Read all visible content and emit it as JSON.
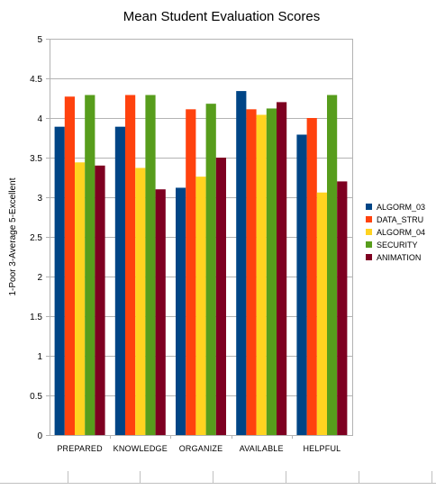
{
  "chart_data": {
    "type": "bar",
    "title": "Mean Student Evaluation Scores",
    "xlabel": "",
    "ylabel": "1-Poor  3-Average  5-Excellent",
    "ylim": [
      0,
      5
    ],
    "yticks": [
      "0",
      "0.5",
      "1",
      "1.5",
      "2",
      "2.5",
      "3",
      "3.5",
      "4",
      "4.5",
      "5"
    ],
    "ytick_values": [
      0,
      0.5,
      1,
      1.5,
      2,
      2.5,
      3,
      3.5,
      4,
      4.5,
      5
    ],
    "grid": "horizontal",
    "legend_position": "right",
    "categories": [
      "PREPARED",
      "KNOWLEDGE",
      "ORGANIZE",
      "AVAILABLE",
      "HELPFUL"
    ],
    "series": [
      {
        "name": "ALGORM_03",
        "color": "#004586",
        "values": [
          3.89,
          3.89,
          3.12,
          4.34,
          3.79
        ]
      },
      {
        "name": "DATA_STRU",
        "color": "#ff420e",
        "values": [
          4.27,
          4.29,
          4.11,
          4.11,
          4.0
        ]
      },
      {
        "name": "ALGORM_04",
        "color": "#ffd320",
        "values": [
          3.44,
          3.37,
          3.26,
          4.04,
          3.06
        ]
      },
      {
        "name": "SECURITY",
        "color": "#579d1c",
        "values": [
          4.29,
          4.29,
          4.18,
          4.12,
          4.29
        ]
      },
      {
        "name": "ANIMATION",
        "color": "#7e0021",
        "values": [
          3.4,
          3.1,
          3.5,
          4.2,
          3.2
        ]
      }
    ]
  }
}
